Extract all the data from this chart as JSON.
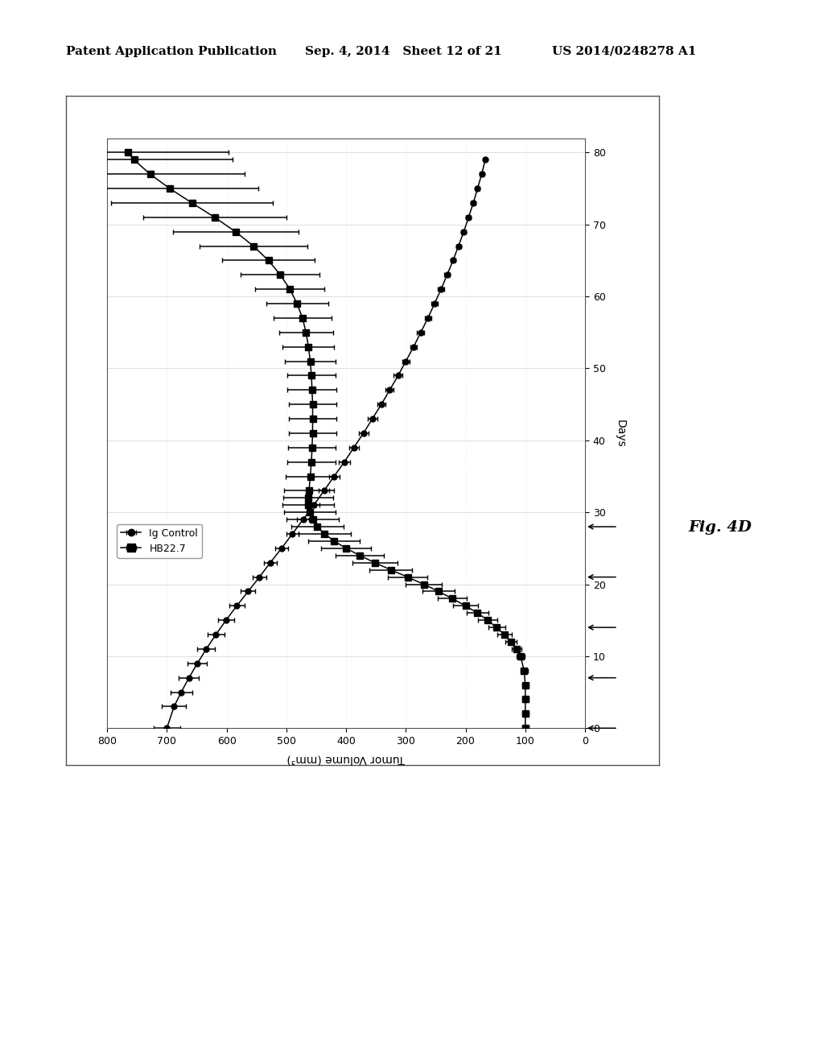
{
  "header_left": "Patent Application Publication",
  "header_mid": "Sep. 4, 2014   Sheet 12 of 21",
  "header_right": "US 2014/0248278 A1",
  "fig_label": "Fig. 4D",
  "xlabel_days": "Days",
  "ylabel_tumor": "Tumor Volume (mm³)",
  "legend_labels": [
    "Ig Control",
    "HB22.7"
  ],
  "ig_control_days": [
    0,
    3,
    5,
    7,
    9,
    11,
    13,
    15,
    17,
    19,
    21,
    23,
    25,
    27,
    29,
    31,
    33,
    35,
    37,
    39,
    41,
    43,
    45,
    47,
    49,
    51,
    53,
    55,
    57,
    59,
    61,
    63,
    65,
    67,
    69,
    71,
    73,
    75,
    77,
    79
  ],
  "ig_control_vol": [
    700,
    688,
    676,
    663,
    649,
    634,
    618,
    601,
    583,
    564,
    545,
    527,
    508,
    490,
    472,
    454,
    437,
    420,
    403,
    387,
    371,
    356,
    341,
    327,
    313,
    300,
    287,
    275,
    263,
    252,
    241,
    231,
    221,
    212,
    203,
    195,
    187,
    180,
    173,
    167
  ],
  "ig_control_err": [
    22,
    20,
    18,
    17,
    16,
    15,
    14,
    13,
    13,
    12,
    12,
    11,
    11,
    10,
    10,
    10,
    9,
    9,
    9,
    8,
    8,
    8,
    7,
    7,
    7,
    6,
    6,
    6,
    5,
    5,
    5,
    5,
    4,
    4,
    4,
    4,
    4,
    3,
    3,
    3
  ],
  "hb227_days": [
    0,
    2,
    4,
    6,
    8,
    10,
    11,
    12,
    13,
    14,
    15,
    16,
    17,
    18,
    19,
    20,
    21,
    22,
    23,
    24,
    25,
    26,
    27,
    28,
    29,
    30,
    31,
    32,
    33,
    35,
    37,
    39,
    41,
    43,
    45,
    47,
    49,
    51,
    53,
    55,
    57,
    59,
    61,
    63,
    65,
    67,
    69,
    71,
    73,
    75,
    77,
    79,
    80
  ],
  "hb227_vol": [
    100,
    100,
    100,
    100,
    102,
    108,
    115,
    124,
    135,
    148,
    163,
    180,
    200,
    222,
    245,
    270,
    297,
    325,
    352,
    377,
    400,
    420,
    436,
    448,
    456,
    461,
    463,
    463,
    462,
    460,
    458,
    457,
    456,
    456,
    456,
    457,
    458,
    460,
    463,
    467,
    473,
    482,
    494,
    510,
    530,
    555,
    585,
    620,
    658,
    695,
    728,
    755,
    765
  ],
  "hb227_err": [
    5,
    5,
    5,
    5,
    6,
    7,
    8,
    10,
    12,
    14,
    16,
    18,
    21,
    24,
    27,
    30,
    33,
    36,
    38,
    40,
    42,
    43,
    44,
    44,
    44,
    43,
    43,
    42,
    42,
    41,
    41,
    40,
    40,
    40,
    40,
    41,
    41,
    42,
    43,
    45,
    48,
    52,
    58,
    66,
    77,
    90,
    105,
    120,
    135,
    148,
    158,
    165,
    168
  ],
  "treatment_days": [
    0,
    7,
    14,
    21,
    28
  ],
  "background_color": "#ffffff",
  "outer_box_color": "#888888",
  "grid_color": "#cccccc",
  "line_color": "#000000"
}
